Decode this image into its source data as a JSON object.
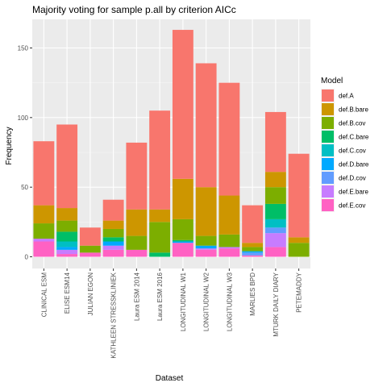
{
  "chart_data": {
    "type": "bar",
    "stacked": true,
    "title": "Majority voting for sample p.all by criterion AICc",
    "xlabel": "Dataset",
    "ylabel": "Frequency",
    "ylim": [
      0,
      175
    ],
    "yticks": [
      0,
      50,
      100,
      150
    ],
    "grid": true,
    "legend": {
      "title": "Model",
      "placement": "right"
    },
    "categories": [
      "CLINICAL ESM",
      "ELISE ESM14",
      "JULIAN EGON",
      "KATHLEEN STRESSKLINIEK",
      "Laura ESM 2014",
      "Laura ESM 2016",
      "LONGITUDINAL W1",
      "LONGITUDINAL W2",
      "LONGITUDINAL W3",
      "MARLIES BPD",
      "MTURK DAILY DIARY",
      "PETEMADDY"
    ],
    "series": [
      {
        "name": "def.A",
        "color": "#F8766D",
        "values": [
          46,
          60,
          13,
          15,
          48,
          71,
          107,
          89,
          81,
          27,
          43,
          60
        ]
      },
      {
        "name": "def.B.bare",
        "color": "#CD9600",
        "values": [
          13,
          9,
          0,
          6,
          19,
          9,
          29,
          35,
          28,
          3,
          11,
          4
        ]
      },
      {
        "name": "def.B.cov",
        "color": "#7CAE00",
        "values": [
          11,
          8,
          5,
          6,
          10,
          22,
          15,
          7,
          9,
          3,
          12,
          10
        ]
      },
      {
        "name": "def.C.bare",
        "color": "#00BE67",
        "values": [
          0,
          7,
          0,
          3,
          0,
          3,
          1,
          0,
          0,
          0,
          11,
          0
        ]
      },
      {
        "name": "def.C.cov",
        "color": "#00BFC4",
        "values": [
          0,
          4,
          0,
          0,
          0,
          0,
          0,
          0,
          0,
          0,
          6,
          0
        ]
      },
      {
        "name": "def.D.bare",
        "color": "#00A9FF",
        "values": [
          0,
          2,
          0,
          3,
          0,
          0,
          1,
          2,
          0,
          1,
          0,
          0
        ]
      },
      {
        "name": "def.D.cov",
        "color": "#619CFF",
        "values": [
          0,
          0,
          0,
          0,
          0,
          0,
          0,
          0,
          0,
          2,
          4,
          0
        ]
      },
      {
        "name": "def.E.bare",
        "color": "#C77CFF",
        "values": [
          2,
          3,
          0,
          3,
          0,
          0,
          0,
          1,
          1,
          0,
          10,
          0
        ]
      },
      {
        "name": "def.E.cov",
        "color": "#FF61C3",
        "values": [
          11,
          2,
          3,
          5,
          5,
          0,
          10,
          5,
          6,
          1,
          7,
          0
        ]
      }
    ]
  }
}
